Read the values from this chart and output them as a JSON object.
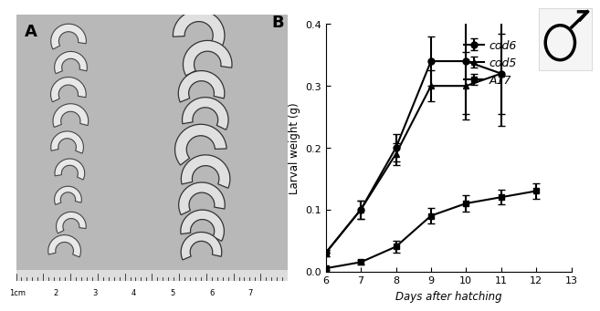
{
  "days_cod": [
    6,
    7,
    8,
    9,
    10,
    11
  ],
  "cod6_y": [
    0.03,
    0.1,
    0.2,
    0.34,
    0.34,
    0.32
  ],
  "cod6_yerr": [
    0.005,
    0.015,
    0.022,
    0.04,
    0.085,
    0.085
  ],
  "cod5_y": [
    0.03,
    0.1,
    0.19,
    0.3,
    0.3,
    0.32
  ],
  "cod5_yerr": [
    0.005,
    0.015,
    0.018,
    0.025,
    0.055,
    0.065
  ],
  "days_A17": [
    6,
    7,
    8,
    9,
    10,
    11,
    12
  ],
  "A17_y": [
    0.005,
    0.015,
    0.04,
    0.09,
    0.11,
    0.12,
    0.13
  ],
  "A17_yerr": [
    0.002,
    0.004,
    0.01,
    0.013,
    0.013,
    0.012,
    0.012
  ],
  "xlabel": "Days after hatching",
  "ylabel": "Larval weight (g)",
  "xlim": [
    6,
    13
  ],
  "ylim": [
    0,
    0.4
  ],
  "yticks": [
    0.0,
    0.1,
    0.2,
    0.3,
    0.4
  ],
  "xticks": [
    6,
    7,
    8,
    9,
    10,
    11,
    12,
    13
  ],
  "label_cod6": "cod6",
  "label_cod5": "cod5",
  "label_A17": "A17",
  "panel_A": "A",
  "panel_B": "B",
  "bg_gray": 0.72,
  "ruler_labels": [
    "1cm",
    "2",
    "3",
    "4",
    "5",
    "6",
    "7"
  ]
}
